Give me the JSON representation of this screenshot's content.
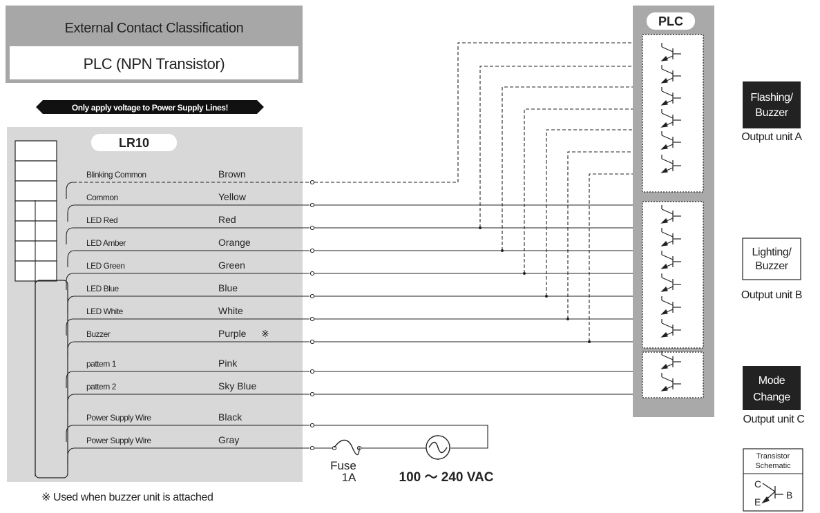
{
  "header": {
    "title": "External Contact Classification",
    "subtitle": "PLC (NPN Transistor)",
    "warning": "Only apply voltage to Power Supply Lines!"
  },
  "lr10": {
    "title": "LR10",
    "wires": [
      {
        "function": "Blinking Common",
        "color": "Brown"
      },
      {
        "function": "Common",
        "color": "Yellow"
      },
      {
        "function": "LED Red",
        "color": "Red"
      },
      {
        "function": "LED Amber",
        "color": "Orange"
      },
      {
        "function": "LED Green",
        "color": "Green"
      },
      {
        "function": "LED Blue",
        "color": "Blue"
      },
      {
        "function": "LED White",
        "color": "White"
      },
      {
        "function": "Buzzer",
        "color": "Purple",
        "mark": "※"
      },
      {
        "function": "pattern 1",
        "color": "Pink"
      },
      {
        "function": "pattern 2",
        "color": "Sky Blue"
      },
      {
        "function": "Power Supply Wire",
        "color": "Black"
      },
      {
        "function": "Power Supply Wire",
        "color": "Gray"
      }
    ],
    "footnote": "※ Used when buzzer unit is attached"
  },
  "power": {
    "fuse_label": "Fuse",
    "fuse_rating": "1A",
    "supply": "100 ～ 240 VAC"
  },
  "plc": {
    "title": "PLC"
  },
  "outputs": [
    {
      "line1": "Flashing/",
      "line2": "Buzzer",
      "caption": "Output unit A",
      "style": "dark"
    },
    {
      "line1": "Lighting/",
      "line2": "Buzzer",
      "caption": "Output unit B",
      "style": "light"
    },
    {
      "line1": "Mode",
      "line2": "Change",
      "caption": "Output unit C",
      "style": "dark"
    }
  ],
  "schematic": {
    "title1": "Transistor",
    "title2": "Schematic",
    "c": "C",
    "e": "E",
    "b": "B"
  },
  "colors": {
    "panel_gray": "#d8d8d8",
    "header_gray": "#a7a7a7",
    "plc_gray": "#a9a9a9",
    "dark_box": "#222222"
  }
}
